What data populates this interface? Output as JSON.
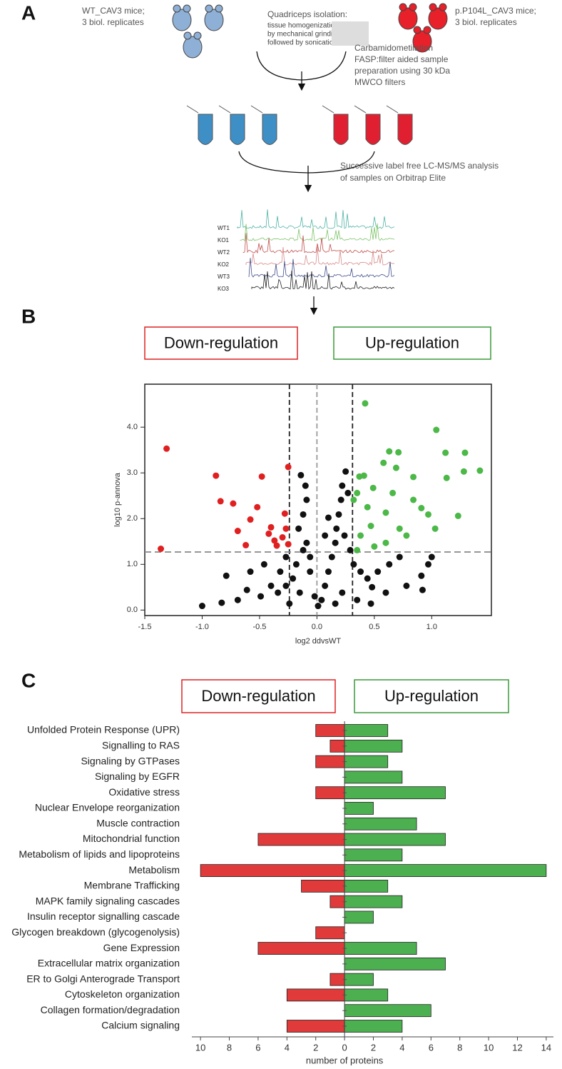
{
  "panel_labels": [
    "A",
    "B",
    "C"
  ],
  "workflow": {
    "wt_mice": [
      "WT_CAV3 mice;",
      "3 biol. replicates"
    ],
    "isolation": [
      "Quadriceps isolation:",
      "tissue homogenization",
      "by mechanical grinding",
      "followed by sonication"
    ],
    "mutant_mice": [
      "p.P104L_CAV3 mice;",
      "3 biol. replicates"
    ],
    "preparation": [
      "Carbamidometilation",
      "FASP:filter aided sample",
      "preparation using 30 kDa",
      "MWCO filters"
    ],
    "analysis": [
      "Successive label free LC-MS/MS analysis",
      "of samples on Orbitrap Elite"
    ],
    "traces": [
      "WT1",
      "KO1",
      "WT2",
      "KO2",
      "WT3",
      "KO3"
    ]
  },
  "chart_data": [
    {
      "type": "scatter",
      "xlabel": "log2 ddvsWT",
      "ylabel": "log10 p-annova",
      "region_labels": [
        "Down-regulation",
        "Up-regulation"
      ],
      "xlim": [
        -1.5,
        1.52
      ],
      "ylim": [
        -0.12,
        4.94
      ],
      "xticks": [
        -1.5,
        {
          "value": -1,
          "label": "-1.0"
        },
        -0.5,
        {
          "value": 0,
          "label": "0.0"
        },
        0.5,
        {
          "value": 1,
          "label": "1.0"
        }
      ],
      "yticks": [
        {
          "value": 0,
          "label": "0.0"
        },
        {
          "value": 1,
          "label": "1.0"
        },
        {
          "value": 2,
          "label": "2.0"
        },
        {
          "value": 3,
          "label": "3.0"
        },
        {
          "value": 4,
          "label": "4.0"
        }
      ],
      "x_lines": [
        -0.24,
        0,
        0.31
      ],
      "y_lines": [
        1.27
      ],
      "series": [
        {
          "color": "#e02020",
          "x": [
            -1.31,
            -0.88,
            -1.36,
            -0.84,
            -0.73,
            -0.48,
            -0.25,
            -0.52,
            -0.58,
            -0.69,
            -0.62,
            -0.4,
            -0.37,
            -0.27,
            -0.28,
            -0.3,
            -0.25,
            -0.35,
            -0.42
          ],
          "values": [
            3.53,
            2.94,
            1.34,
            2.38,
            2.33,
            2.92,
            3.13,
            2.25,
            1.98,
            1.73,
            1.42,
            1.81,
            1.52,
            1.78,
            2.11,
            1.59,
            1.44,
            1.41,
            1.67
          ]
        },
        {
          "color": "#4cb848",
          "x": [
            0.42,
            1.04,
            1.29,
            1.12,
            1.13,
            1.42,
            1.28,
            1.23,
            0.63,
            0.71,
            0.41,
            0.37,
            0.49,
            0.66,
            0.84,
            0.35,
            0.44,
            0.6,
            0.47,
            0.72,
            0.91,
            0.97,
            0.38,
            0.6,
            0.78,
            0.35,
            0.5,
            0.69,
            0.58,
            0.32,
            0.84,
            1.03
          ],
          "values": [
            4.52,
            3.94,
            3.44,
            3.44,
            2.89,
            3.05,
            3.03,
            2.06,
            3.47,
            3.45,
            2.94,
            2.92,
            2.67,
            2.56,
            2.41,
            2.56,
            2.25,
            2.13,
            1.84,
            1.78,
            2.23,
            2.09,
            1.63,
            1.47,
            1.63,
            1.31,
            1.39,
            3.11,
            3.22,
            2.41,
            2.91,
            1.78
          ]
        },
        {
          "color": "#111111",
          "x": [
            -1.0,
            -0.83,
            -0.79,
            -0.61,
            -0.69,
            -0.58,
            -0.46,
            -0.4,
            -0.32,
            -0.27,
            -0.21,
            -0.18,
            -0.15,
            -0.12,
            -0.16,
            -0.12,
            -0.09,
            -0.1,
            -0.14,
            -0.09,
            -0.06,
            -0.02,
            0.01,
            0.04,
            0.07,
            0.1,
            0.13,
            0.16,
            0.17,
            0.19,
            0.21,
            0.22,
            0.27,
            0.25,
            0.24,
            0.29,
            0.32,
            0.38,
            0.44,
            0.53,
            0.48,
            0.6,
            0.47,
            0.35,
            0.78,
            0.91,
            0.97,
            1.0,
            0.92,
            0.72,
            0.63,
            -0.06,
            0.07,
            0.1,
            -0.34,
            -0.49,
            -0.24,
            0.16,
            0.22,
            -0.27
          ],
          "values": [
            0.09,
            0.16,
            0.75,
            0.44,
            0.22,
            0.84,
            1.0,
            0.53,
            0.84,
            1.16,
            0.69,
            1.0,
            0.38,
            1.31,
            1.78,
            2.09,
            2.41,
            2.72,
            2.95,
            1.47,
            0.84,
            0.3,
            0.09,
            0.22,
            0.53,
            0.84,
            1.16,
            1.47,
            1.78,
            2.09,
            2.41,
            2.72,
            2.56,
            3.03,
            1.63,
            1.31,
            1.0,
            0.84,
            0.69,
            0.84,
            0.5,
            0.38,
            0.14,
            0.22,
            0.53,
            0.75,
            1.0,
            1.16,
            0.44,
            1.16,
            1.0,
            1.16,
            1.63,
            2.02,
            0.38,
            0.3,
            0.14,
            0.14,
            0.38,
            0.53
          ]
        }
      ]
    },
    {
      "type": "diverging-bar",
      "xlabel": "number of proteins",
      "region_labels": [
        "Down-regulation",
        "Up-regulation"
      ],
      "categories": [
        "Unfolded Protein Response (UPR)",
        "Signalling to RAS",
        "Signaling by GTPases",
        "Signaling by EGFR",
        "Oxidative stress",
        "Nuclear Envelope reorganization",
        "Muscle contraction",
        "Mitochondrial function",
        "Metabolism of lipids and lipoproteins",
        "Metabolism",
        "Membrane Trafficking",
        "MAPK family signaling cascades",
        "Insulin receptor signalling cascade",
        "Glycogen breakdown (glycogenolysis)",
        "Gene Expression",
        "Extracellular matrix organization",
        "ER to Golgi Anterograde Transport",
        "Cytoskeleton organization",
        "Collagen formation/degradation",
        "Calcium signaling"
      ],
      "xlim": [
        -10.6,
        14.5
      ],
      "xticks": [
        {
          "value": -10,
          "label": "10"
        },
        {
          "value": -8,
          "label": "8"
        },
        {
          "value": -6,
          "label": "6"
        },
        {
          "value": -4,
          "label": "4"
        },
        {
          "value": -2,
          "label": "2"
        },
        0,
        2,
        4,
        6,
        8,
        10,
        12,
        14
      ],
      "series": [
        {
          "color": "#e03a3a",
          "values": [
            -2,
            -1,
            -2,
            0,
            -2,
            0,
            0,
            -6,
            0,
            -10,
            -3,
            -1,
            0,
            -2,
            -6,
            0,
            -1,
            -4,
            0,
            -4
          ]
        },
        {
          "color": "#4caf50",
          "values": [
            3,
            4,
            3,
            4,
            7,
            2,
            5,
            7,
            4,
            14,
            3,
            4,
            2,
            0,
            5,
            7,
            2,
            3,
            6,
            4
          ]
        }
      ]
    }
  ]
}
